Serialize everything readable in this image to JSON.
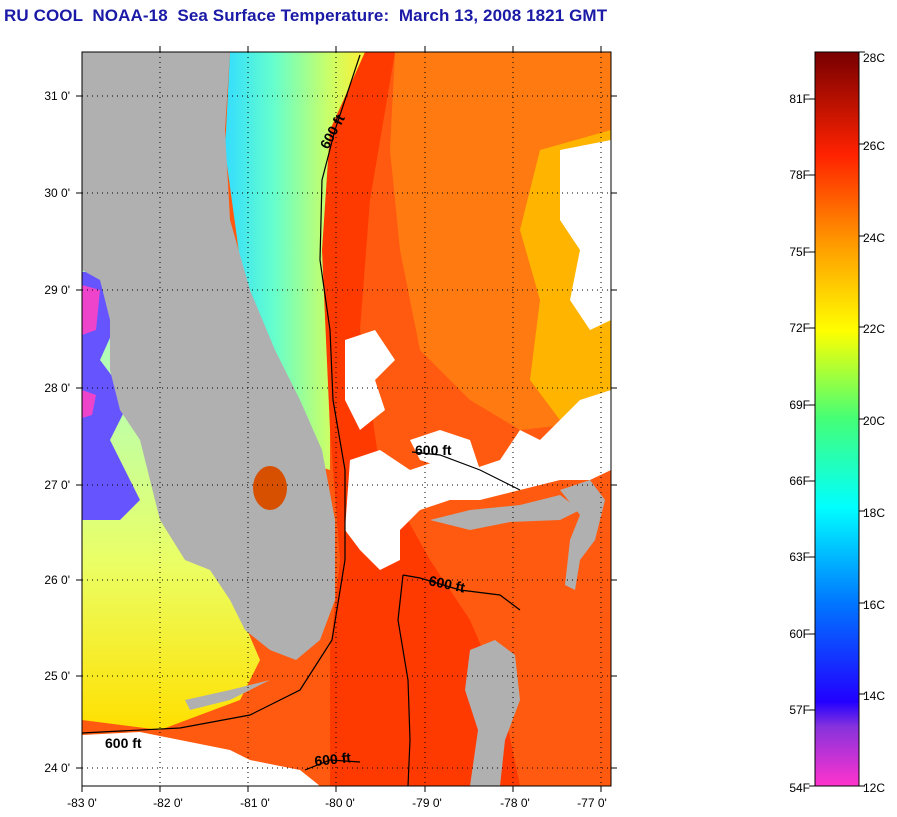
{
  "title": "RU COOL  NOAA-18  Sea Surface Temperature:  March 13, 2008 1821 GMT",
  "map": {
    "lat_ticks": [
      "31 0'",
      "30 0'",
      "29 0'",
      "28 0'",
      "27 0'",
      "26 0'",
      "25 0'",
      "24 0'"
    ],
    "lon_ticks": [
      "-83 0'",
      "-82 0'",
      "-81 0'",
      "-80 0'",
      "-79 0'",
      "-78 0'",
      "-77 0'"
    ],
    "contour_labels": [
      "600 ft",
      "600 ft",
      "600 ft",
      "600 ft",
      "600 ft"
    ]
  },
  "colorbar": {
    "celsius_labels": [
      "28C",
      "26C",
      "24C",
      "22C",
      "20C",
      "18C",
      "16C",
      "14C",
      "12C"
    ],
    "fahrenheit_labels": [
      "81F",
      "78F",
      "75F",
      "72F",
      "69F",
      "66F",
      "63F",
      "60F",
      "57F",
      "54F"
    ]
  },
  "colors": {
    "land": "#b0b0b0",
    "cloud": "#ffffff",
    "title": "#1a1aa6"
  }
}
